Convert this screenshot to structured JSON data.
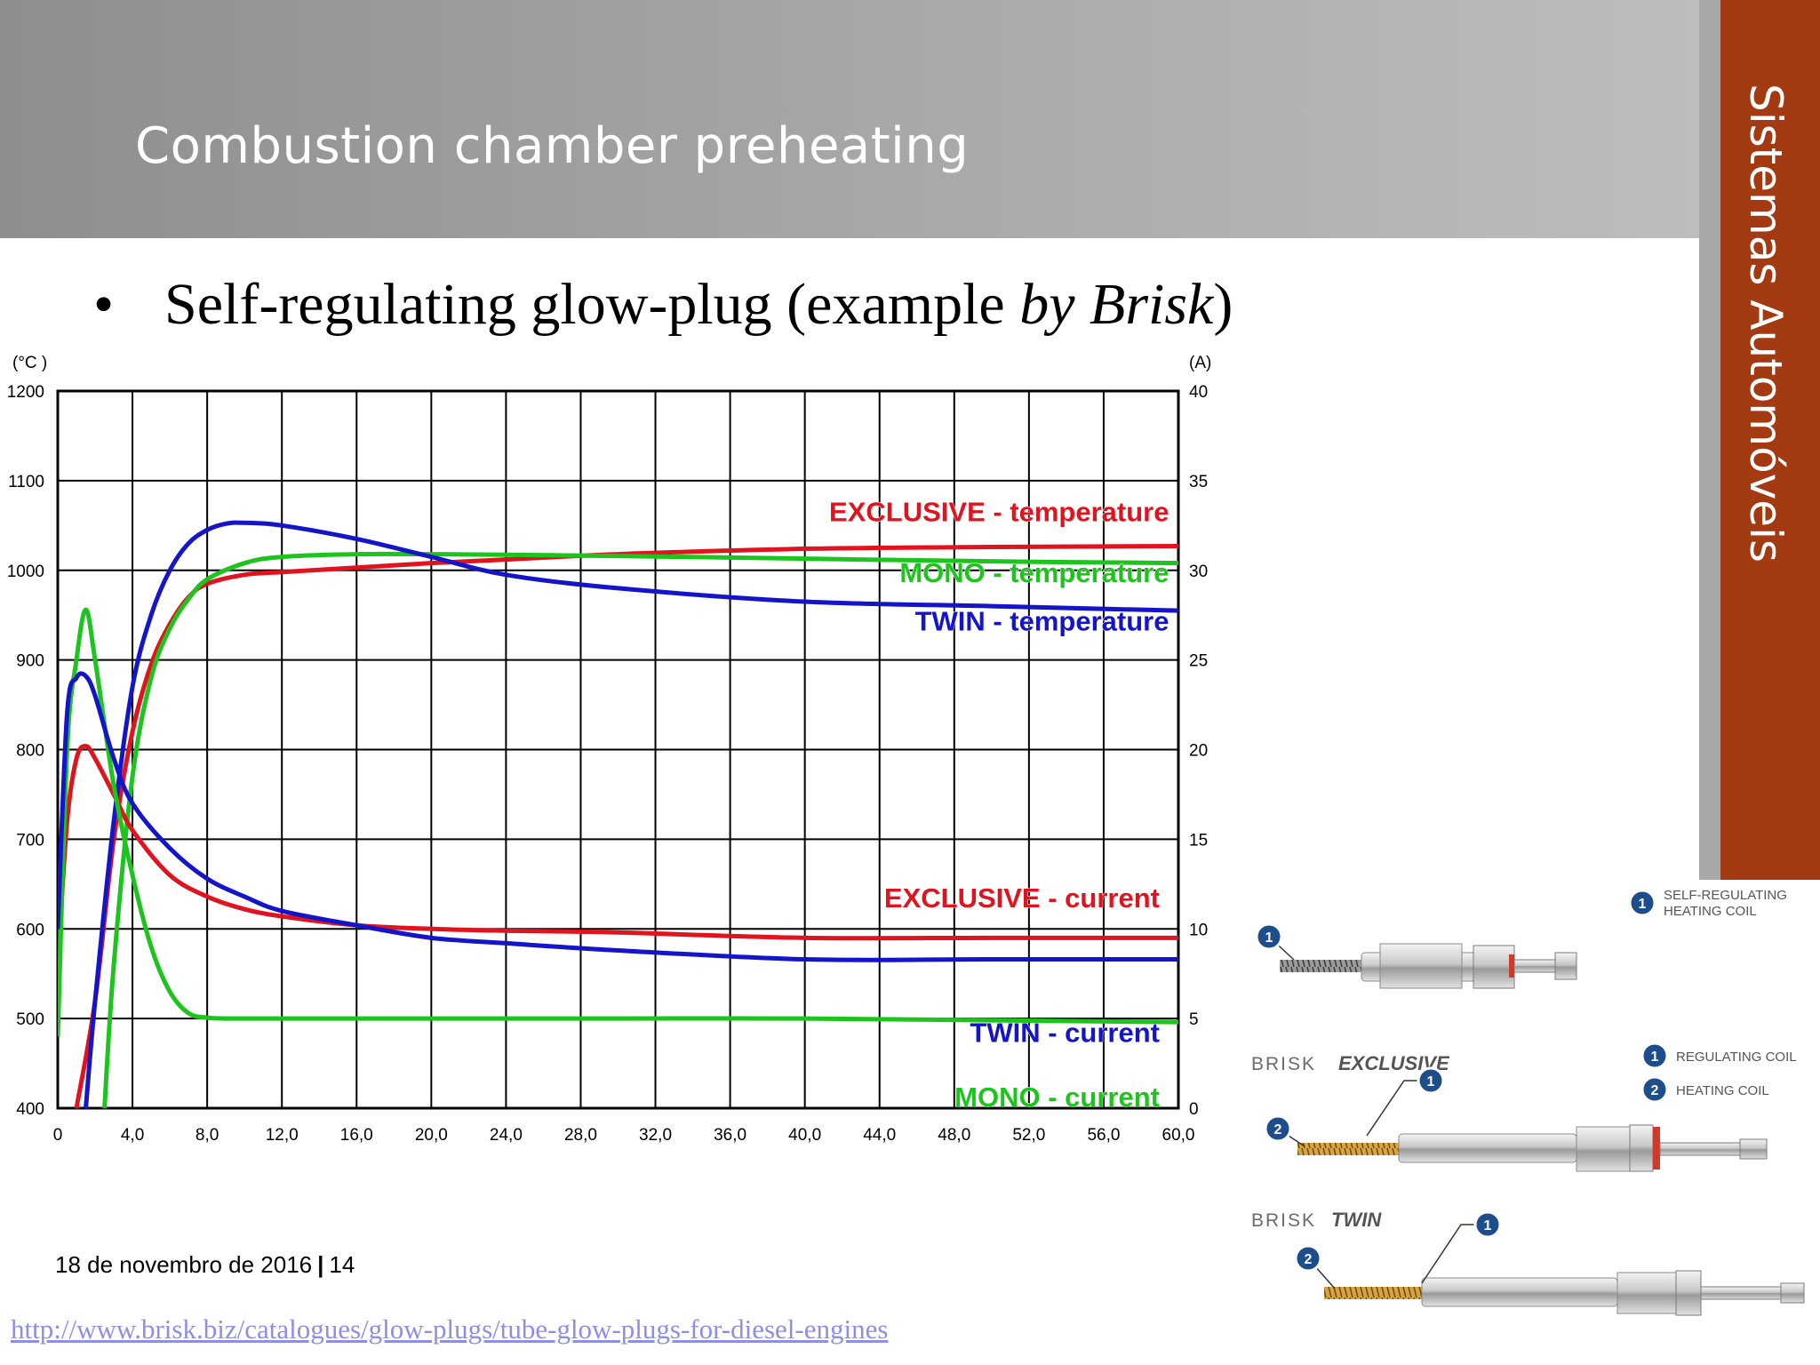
{
  "slide": {
    "title": "Combustion chamber preheating",
    "side_label": "Sistemas Automóveis",
    "bullet": {
      "prefix": "Self-regulating glow-plug (example ",
      "italic": "by Brisk",
      "suffix": ")"
    },
    "footer": {
      "date": "18 de novembro de 2016",
      "separator": "|",
      "page": "14"
    },
    "source_url": "http://www.brisk.biz/catalogues/glow-plugs/tube-glow-plugs-for-diesel-engines"
  },
  "colors": {
    "header": "#9a9a9a",
    "side_strip": "#a33a12",
    "exclusive": "#e0141e",
    "mono": "#1ec41e",
    "twin": "#1414c8",
    "grid": "#000000"
  },
  "chart_data": {
    "type": "line",
    "title": "",
    "xlabel": "",
    "ylabel_left": "(°C )",
    "ylabel_right": "(A)",
    "xlim": [
      0,
      60
    ],
    "ylim_left": [
      400,
      1200
    ],
    "ylim_right": [
      0,
      40
    ],
    "grid": true,
    "x_ticks": [
      "0",
      "4,0",
      "8,0",
      "12,0",
      "16,0",
      "20,0",
      "24,0",
      "28,0",
      "32,0",
      "36,0",
      "40,0",
      "44,0",
      "48,0",
      "52,0",
      "56,0",
      "60,0"
    ],
    "y_left_ticks": [
      "400",
      "500",
      "600",
      "700",
      "800",
      "900",
      "1000",
      "1100",
      "1200"
    ],
    "y_right_ticks": [
      "0",
      "5",
      "10",
      "15",
      "20",
      "25",
      "30",
      "35",
      "40"
    ],
    "series": [
      {
        "name": "EXCLUSIVE - temperature",
        "color": "#e0141e",
        "axis": "left",
        "x": [
          1,
          2,
          3,
          4,
          5,
          6,
          7,
          8,
          10,
          12,
          16,
          20,
          24,
          30,
          40,
          50,
          60
        ],
        "y": [
          400,
          520,
          700,
          820,
          895,
          940,
          970,
          985,
          995,
          998,
          1003,
          1008,
          1012,
          1018,
          1024,
          1026,
          1027
        ]
      },
      {
        "name": "MONO - temperature",
        "color": "#1ec41e",
        "axis": "left",
        "x": [
          2.5,
          3,
          4,
          5,
          6,
          7,
          8,
          10,
          12,
          16,
          20,
          30,
          40,
          50,
          60
        ],
        "y": [
          400,
          560,
          770,
          880,
          935,
          968,
          990,
          1008,
          1015,
          1018,
          1018,
          1016,
          1013,
          1010,
          1008
        ]
      },
      {
        "name": "TWIN - temperature",
        "color": "#1414c8",
        "axis": "left",
        "x": [
          1.5,
          2,
          3,
          4,
          5,
          6,
          7,
          8,
          9,
          10,
          12,
          16,
          20,
          24,
          30,
          40,
          50,
          60
        ],
        "y": [
          400,
          520,
          720,
          870,
          950,
          1000,
          1030,
          1045,
          1052,
          1053,
          1050,
          1035,
          1015,
          995,
          980,
          965,
          960,
          955
        ]
      },
      {
        "name": "EXCLUSIVE - current",
        "color": "#e0141e",
        "axis": "right",
        "x": [
          0,
          0.5,
          1,
          1.5,
          2,
          3,
          4,
          6,
          8,
          10,
          12,
          16,
          20,
          24,
          30,
          40,
          50,
          60
        ],
        "y": [
          8,
          16,
          19.5,
          20.2,
          19.5,
          17.5,
          15.5,
          13,
          11.8,
          11.1,
          10.7,
          10.2,
          10,
          9.9,
          9.8,
          9.5,
          9.5,
          9.5
        ]
      },
      {
        "name": "MONO - current",
        "color": "#1ec41e",
        "axis": "right",
        "x": [
          0,
          0.5,
          1,
          1.5,
          2,
          3,
          4,
          5,
          6,
          7,
          8,
          9,
          10,
          20,
          30,
          40,
          50,
          60
        ],
        "y": [
          4,
          20,
          25,
          27.8,
          25,
          18,
          13,
          9,
          6.5,
          5.3,
          5.05,
          5,
          5,
          5,
          5,
          5,
          4.9,
          4.8
        ]
      },
      {
        "name": "TWIN - current",
        "color": "#1414c8",
        "axis": "right",
        "x": [
          0,
          0.5,
          1,
          1.5,
          2,
          3,
          4,
          6,
          8,
          10,
          12,
          16,
          20,
          24,
          30,
          40,
          50,
          60
        ],
        "y": [
          10,
          22,
          24,
          24.1,
          23,
          19.5,
          17,
          14.5,
          12.8,
          11.8,
          11,
          10.2,
          9.5,
          9.2,
          8.8,
          8.3,
          8.3,
          8.3
        ]
      }
    ],
    "annotations": [
      {
        "text": "EXCLUSIVE - temperature",
        "color": "#e0141e",
        "x": 59.5,
        "y": 1055,
        "axis": "left"
      },
      {
        "text": "MONO - temperature",
        "color": "#1ec41e",
        "x": 59.5,
        "y": 987,
        "axis": "left"
      },
      {
        "text": "TWIN - temperature",
        "color": "#1414c8",
        "x": 59.5,
        "y": 933,
        "axis": "left"
      },
      {
        "text": "EXCLUSIVE - current",
        "color": "#e0141e",
        "x": 59,
        "y": 11.2,
        "axis": "right"
      },
      {
        "text": "TWIN - current",
        "color": "#1414c8",
        "x": 59,
        "y": 3.7,
        "axis": "right"
      },
      {
        "text": "MONO - current",
        "color": "#1ec41e",
        "x": 59,
        "y": 0.1,
        "axis": "right"
      }
    ]
  },
  "plugs": {
    "brand": "BRISK",
    "mono": {
      "callouts": [
        {
          "num": "1",
          "text": [
            "SELF-REGULATING",
            "HEATING COIL"
          ]
        }
      ]
    },
    "exclusive": {
      "name": "EXCLUSIVE",
      "callouts": [
        {
          "num": "1",
          "text": [
            "REGULATING COIL"
          ]
        },
        {
          "num": "2",
          "text": [
            "HEATING COIL"
          ]
        }
      ]
    },
    "twin": {
      "name": "TWIN"
    }
  }
}
